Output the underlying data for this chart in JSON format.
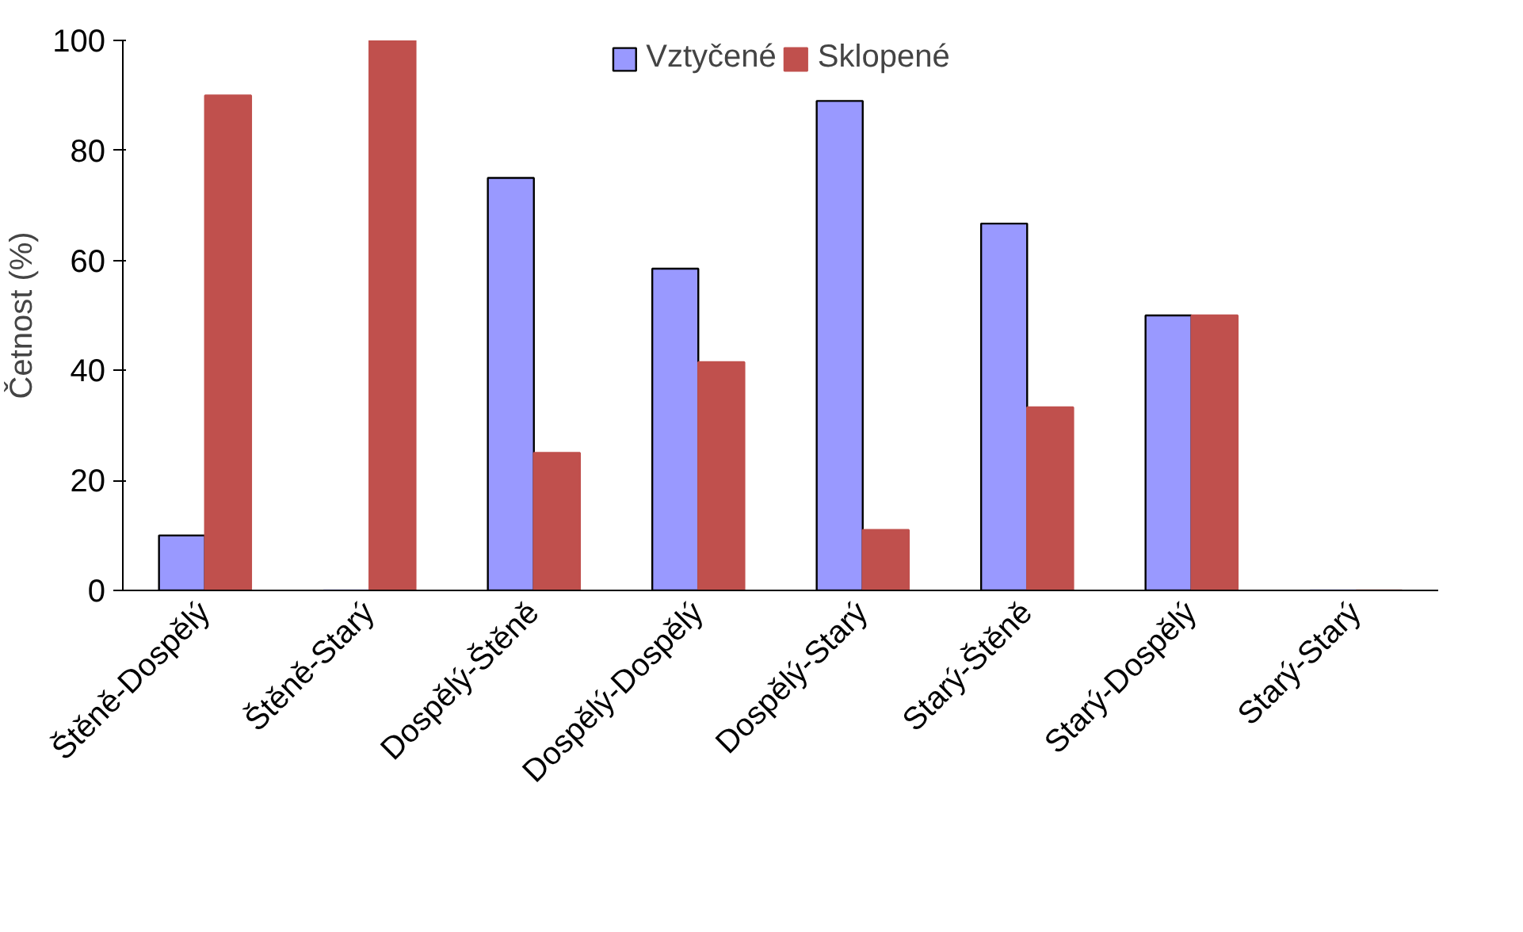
{
  "chart_data": {
    "type": "bar",
    "ylabel": "Četnost (%)",
    "categories": [
      "Štěně-Dospělý",
      "Štěně-Starý",
      "Dospělý-Štěně",
      "Dospělý-Dospělý",
      "Dospělý-Starý",
      "Starý-Štěně",
      "Starý-Dospělý",
      "Starý-Starý"
    ],
    "series": [
      {
        "name": "Vztyčené",
        "color": "#9999ff",
        "values": [
          10,
          0,
          75,
          58.5,
          89,
          66.7,
          50,
          0
        ]
      },
      {
        "name": "Sklopené",
        "color": "#c0504d",
        "values": [
          90,
          100,
          25,
          41.5,
          11,
          33.3,
          50,
          0
        ]
      }
    ],
    "ylim": [
      0,
      100
    ],
    "yticks": [
      0,
      20,
      40,
      60,
      80,
      100
    ],
    "grid": false,
    "legend": "top"
  }
}
